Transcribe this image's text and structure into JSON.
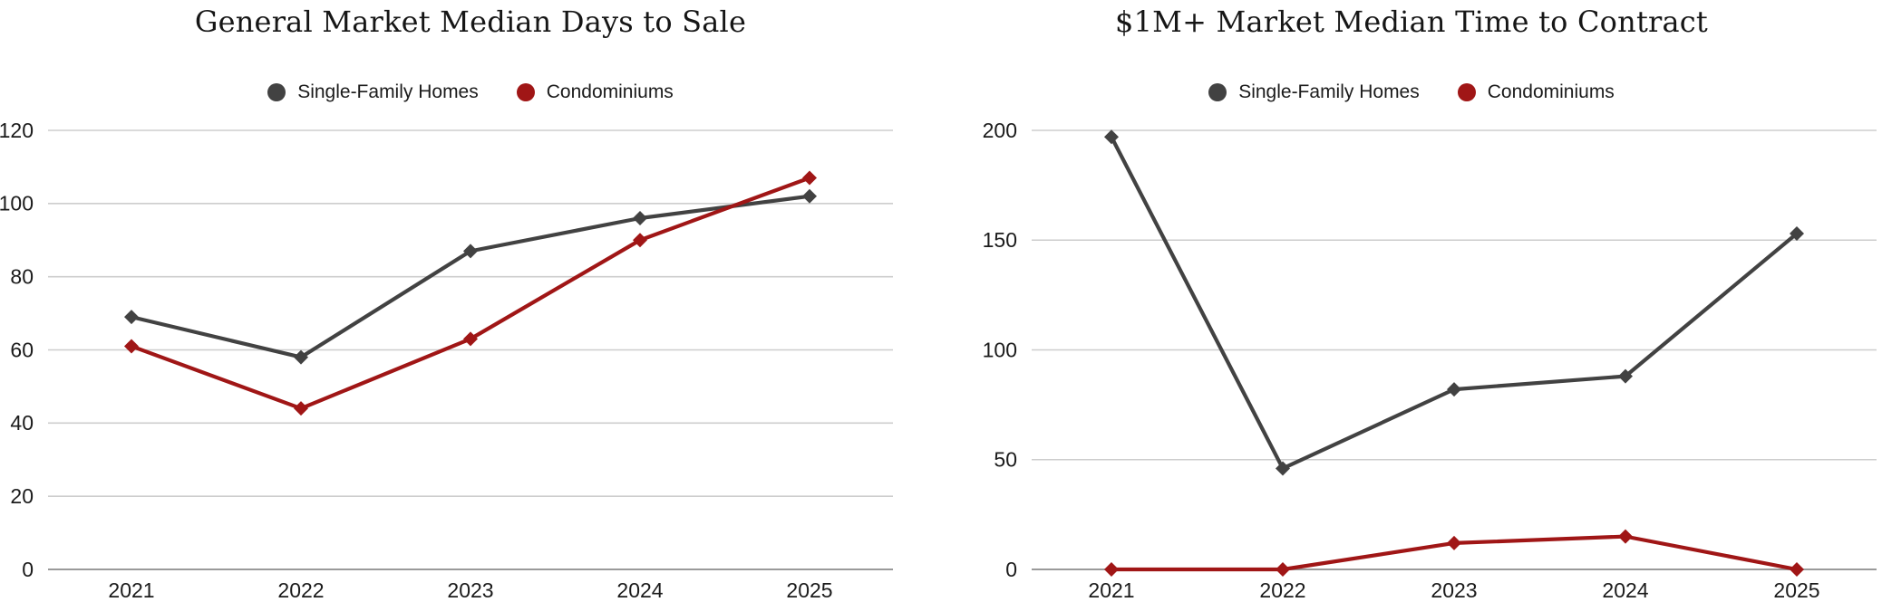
{
  "page": {
    "background": "#ffffff",
    "text_color": "#1b1b1b",
    "gridline_color": "#cdcdcd",
    "axis_line_color": "#9a9a9a"
  },
  "chart_data": [
    {
      "type": "line",
      "title": "General Market Median Days to Sale",
      "categories": [
        "2021",
        "2022",
        "2023",
        "2024",
        "2025"
      ],
      "series": [
        {
          "name": "Single-Family Homes",
          "color": "#424242",
          "marker": "diamond",
          "values": [
            69,
            58,
            87,
            96,
            102
          ]
        },
        {
          "name": "Condominiums",
          "color": "#a01616",
          "marker": "diamond",
          "values": [
            61,
            44,
            63,
            90,
            107
          ]
        }
      ],
      "ylim": [
        0,
        120
      ],
      "y_ticks": [
        0,
        20,
        40,
        60,
        80,
        100,
        120
      ],
      "xlabel": "",
      "ylabel": "",
      "legend_position": "top-center",
      "grid": "horizontal"
    },
    {
      "type": "line",
      "title": "$1M+ Market Median Time to Contract",
      "categories": [
        "2021",
        "2022",
        "2023",
        "2024",
        "2025"
      ],
      "series": [
        {
          "name": "Single-Family Homes",
          "color": "#424242",
          "marker": "diamond",
          "values": [
            197,
            46,
            82,
            88,
            153
          ]
        },
        {
          "name": "Condominiums",
          "color": "#a01616",
          "marker": "diamond",
          "values": [
            0,
            0,
            12,
            15,
            0
          ]
        }
      ],
      "ylim": [
        0,
        200
      ],
      "y_ticks": [
        0,
        50,
        100,
        150,
        200
      ],
      "xlabel": "",
      "ylabel": "",
      "legend_position": "top-center",
      "grid": "horizontal"
    }
  ]
}
